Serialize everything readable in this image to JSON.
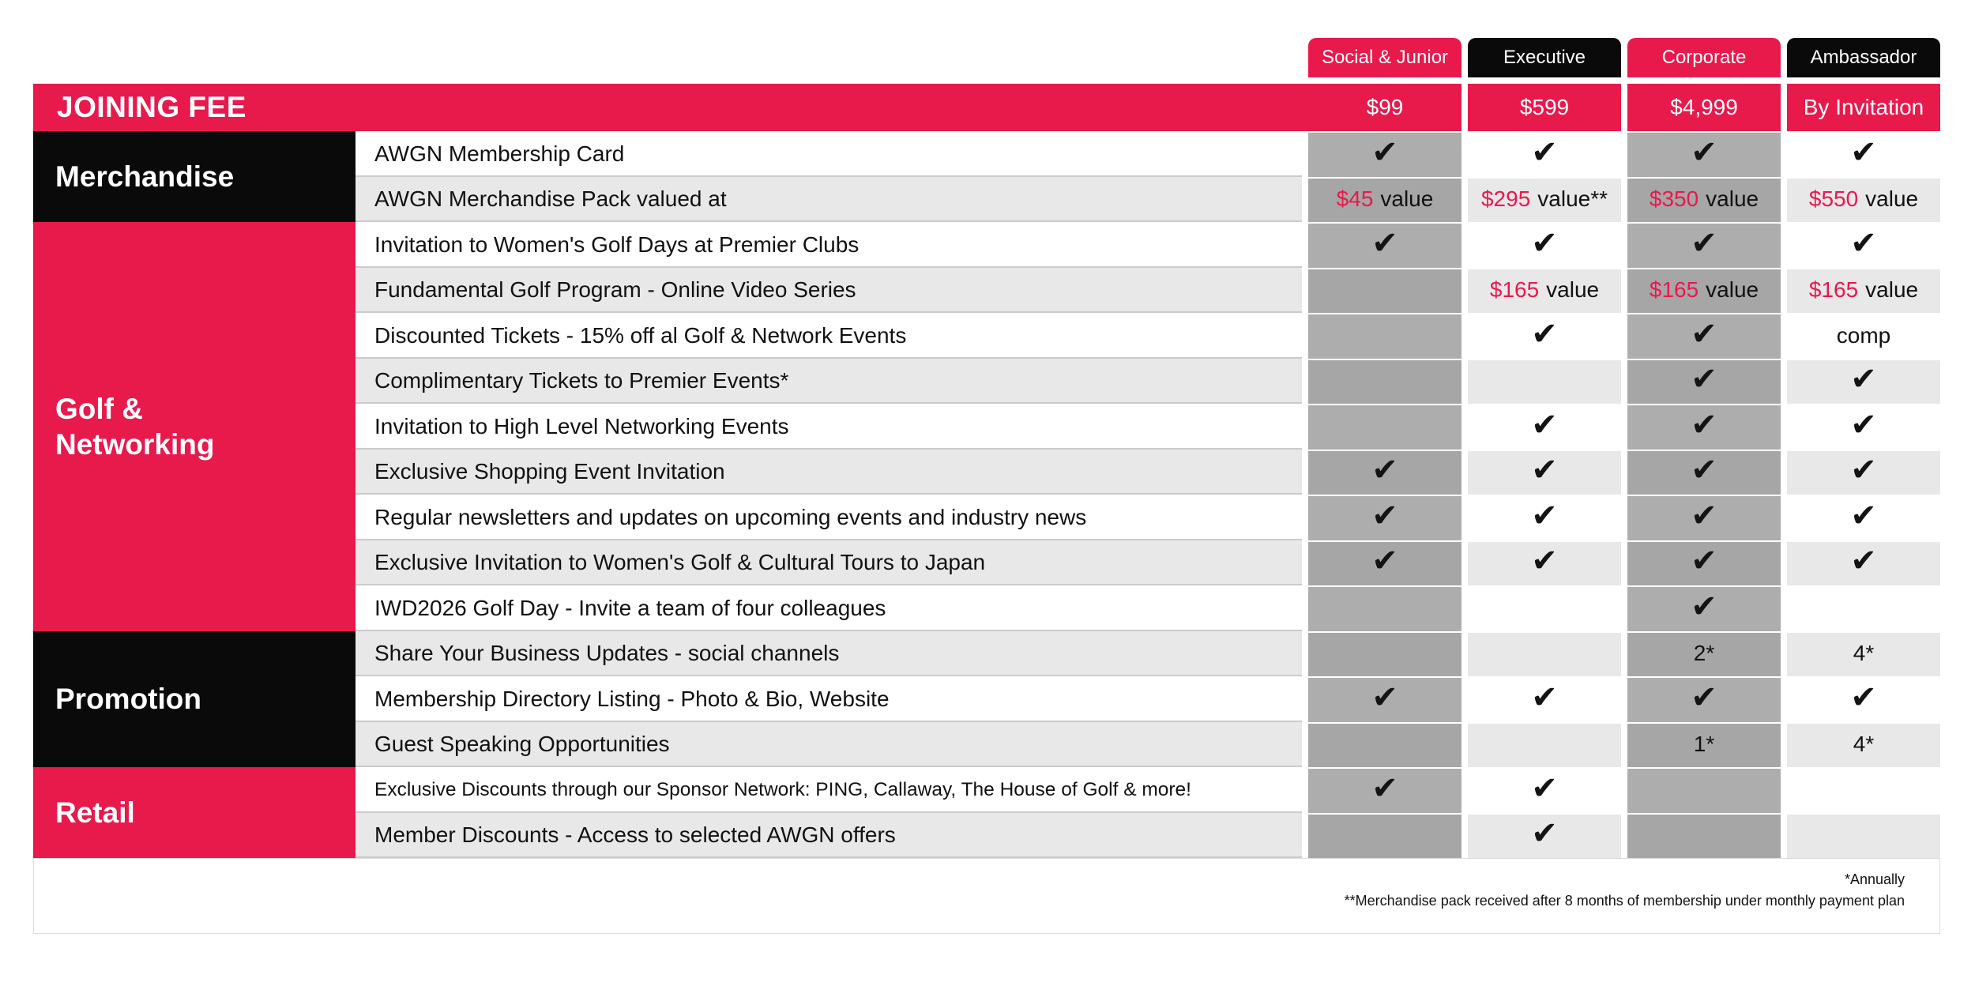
{
  "colors": {
    "accent_pink": "#E8194B",
    "black": "#0A0A0A",
    "row_alt": "#E8E8E8",
    "shade_on_white": "#ADADAD",
    "shade_on_alt": "#A6A6A6",
    "text": "#111111"
  },
  "icons": {
    "check": "✔"
  },
  "chart_data": {
    "type": "table",
    "joining_fee_label": "JOINING FEE",
    "tiers": [
      {
        "name": "Social & Junior",
        "style": "pink",
        "fee": "$99"
      },
      {
        "name": "Executive",
        "style": "black",
        "fee": "$599"
      },
      {
        "name": "Corporate",
        "style": "pink",
        "fee": "$4,999"
      },
      {
        "name": "Ambassador",
        "style": "black",
        "fee": "By Invitation"
      }
    ],
    "row_groups": [
      {
        "name": "Merchandise",
        "style": "black",
        "row_count": 2
      },
      {
        "name": "Golf & Networking",
        "style": "pink",
        "row_count": 9
      },
      {
        "name": "Promotion",
        "style": "black",
        "row_count": 3
      },
      {
        "name": "Retail",
        "style": "pink",
        "row_count": 2
      }
    ],
    "rows": [
      {
        "group": "Merchandise",
        "feature": "AWGN Membership Card",
        "values": [
          {
            "v": "check"
          },
          {
            "v": "check"
          },
          {
            "v": "check"
          },
          {
            "v": "check"
          }
        ]
      },
      {
        "group": "Merchandise",
        "feature": "AWGN Merchandise Pack valued at",
        "values": [
          {
            "amount": "$45",
            "suffix": "value"
          },
          {
            "amount": "$295",
            "suffix": "value**"
          },
          {
            "amount": "$350",
            "suffix": "value"
          },
          {
            "amount": "$550",
            "suffix": "value"
          }
        ]
      },
      {
        "group": "Golf & Networking",
        "feature": "Invitation to Women's Golf Days at Premier Clubs",
        "values": [
          {
            "v": "check"
          },
          {
            "v": "check"
          },
          {
            "v": "check"
          },
          {
            "v": "check"
          }
        ]
      },
      {
        "group": "Golf & Networking",
        "feature": "Fundamental Golf Program - Online Video Series",
        "values": [
          {
            "v": ""
          },
          {
            "amount": "$165",
            "suffix": "value"
          },
          {
            "amount": "$165",
            "suffix": "value"
          },
          {
            "amount": "$165",
            "suffix": "value"
          }
        ]
      },
      {
        "group": "Golf & Networking",
        "feature": "Discounted Tickets - 15% off al Golf & Network Events",
        "values": [
          {
            "v": ""
          },
          {
            "v": "check"
          },
          {
            "v": "check"
          },
          {
            "v": "comp"
          }
        ]
      },
      {
        "group": "Golf & Networking",
        "feature": "Complimentary Tickets to Premier Events*",
        "values": [
          {
            "v": ""
          },
          {
            "v": ""
          },
          {
            "v": "check"
          },
          {
            "v": "check"
          }
        ]
      },
      {
        "group": "Golf & Networking",
        "feature": "Invitation to High Level Networking Events",
        "values": [
          {
            "v": ""
          },
          {
            "v": "check"
          },
          {
            "v": "check"
          },
          {
            "v": "check"
          }
        ]
      },
      {
        "group": "Golf & Networking",
        "feature": "Exclusive Shopping Event Invitation",
        "values": [
          {
            "v": "check"
          },
          {
            "v": "check"
          },
          {
            "v": "check"
          },
          {
            "v": "check"
          }
        ]
      },
      {
        "group": "Golf & Networking",
        "feature": "Regular newsletters and updates on upcoming events and industry news",
        "values": [
          {
            "v": "check"
          },
          {
            "v": "check"
          },
          {
            "v": "check"
          },
          {
            "v": "check"
          }
        ]
      },
      {
        "group": "Golf & Networking",
        "feature": "Exclusive Invitation to Women's Golf & Cultural Tours to Japan",
        "values": [
          {
            "v": "check"
          },
          {
            "v": "check"
          },
          {
            "v": "check"
          },
          {
            "v": "check"
          }
        ]
      },
      {
        "group": "Golf & Networking",
        "feature": "IWD2026 Golf Day - Invite a team of four colleagues",
        "values": [
          {
            "v": ""
          },
          {
            "v": ""
          },
          {
            "v": "check"
          },
          {
            "v": ""
          }
        ]
      },
      {
        "group": "Promotion",
        "feature": "Share Your Business Updates - social channels",
        "values": [
          {
            "v": ""
          },
          {
            "v": ""
          },
          {
            "v": "2*"
          },
          {
            "v": "4*"
          }
        ]
      },
      {
        "group": "Promotion",
        "feature": "Membership Directory Listing - Photo & Bio, Website",
        "values": [
          {
            "v": "check"
          },
          {
            "v": "check"
          },
          {
            "v": "check"
          },
          {
            "v": "check"
          }
        ]
      },
      {
        "group": "Promotion",
        "feature": "Guest Speaking Opportunities",
        "values": [
          {
            "v": ""
          },
          {
            "v": ""
          },
          {
            "v": "1*"
          },
          {
            "v": "4*"
          }
        ]
      },
      {
        "group": "Retail",
        "feature": "Exclusive Discounts through our Sponsor Network: PING, Callaway, The House of Golf & more!",
        "small": true,
        "values": [
          {
            "v": "check"
          },
          {
            "v": "check"
          },
          {
            "v": ""
          },
          {
            "v": ""
          }
        ]
      },
      {
        "group": "Retail",
        "feature": "Member Discounts - Access to selected AWGN offers",
        "values": [
          {
            "v": ""
          },
          {
            "v": "check"
          },
          {
            "v": ""
          },
          {
            "v": ""
          }
        ]
      }
    ],
    "footnotes": [
      "*Annually",
      "**Merchandise pack received after 8 months of membership under monthly payment plan"
    ]
  }
}
